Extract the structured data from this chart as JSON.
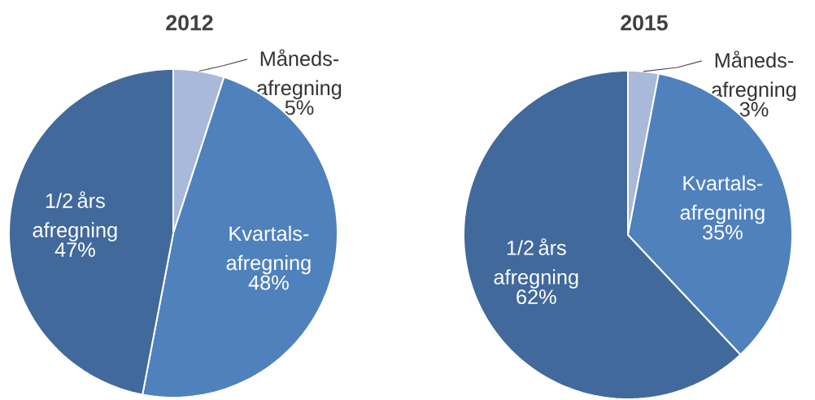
{
  "chart_data": [
    {
      "type": "pie",
      "title": "2012",
      "categories": [
        "Måneds-afregning",
        "Kvartals-afregning",
        "1/2 års afregning"
      ],
      "values": [
        5,
        48,
        47
      ],
      "colors": [
        "#a9b9d9",
        "#4f81bd",
        "#41699c"
      ],
      "value_labels": [
        "5%",
        "48%",
        "47%"
      ]
    },
    {
      "type": "pie",
      "title": "2015",
      "categories": [
        "Måneds-afregning",
        "Kvartals-afregning",
        "1/2 års afregning"
      ],
      "values": [
        3,
        35,
        62
      ],
      "colors": [
        "#a9b9d9",
        "#4f81bd",
        "#41699c"
      ],
      "value_labels": [
        "3%",
        "35%",
        "62%"
      ]
    }
  ]
}
